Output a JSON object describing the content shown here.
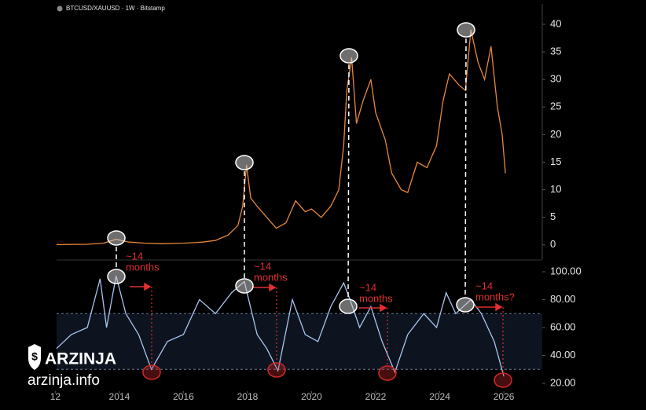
{
  "chart_data": [
    {
      "type": "line",
      "title": "BTCUSD/XAUUSD · 1W · Bitstamp",
      "color": "#e8883a",
      "x": [
        2012.04,
        2013.0,
        2013.5,
        2013.9,
        2014.3,
        2014.8,
        2015.3,
        2016.0,
        2016.6,
        2017.0,
        2017.4,
        2017.7,
        2017.85,
        2017.97,
        2018.1,
        2018.3,
        2018.6,
        2018.9,
        2019.2,
        2019.5,
        2019.8,
        2020.0,
        2020.3,
        2020.6,
        2020.85,
        2021.0,
        2021.1,
        2021.25,
        2021.4,
        2021.6,
        2021.85,
        2022.0,
        2022.3,
        2022.5,
        2022.8,
        2023.0,
        2023.3,
        2023.6,
        2023.9,
        2024.1,
        2024.3,
        2024.6,
        2024.8,
        2024.97,
        2025.2,
        2025.4,
        2025.6,
        2025.8,
        2025.95,
        2026.05
      ],
      "values": [
        0.05,
        0.1,
        0.3,
        1.0,
        0.5,
        0.3,
        0.2,
        0.3,
        0.5,
        0.8,
        1.8,
        3.5,
        7,
        14.5,
        8.5,
        7,
        5,
        3,
        4,
        8,
        6,
        6.5,
        5,
        7,
        10,
        18,
        28,
        34,
        22,
        26,
        30,
        24,
        19,
        13,
        10,
        9.5,
        15,
        14,
        18,
        26,
        31,
        29,
        28,
        39,
        33,
        30,
        36,
        25,
        20,
        13
      ],
      "xlim": [
        2012.04,
        2027.2
      ],
      "ylim": [
        -2.6,
        43.7
      ],
      "yticks": [
        0,
        5,
        10,
        15,
        20,
        25,
        30,
        35,
        40
      ]
    },
    {
      "type": "line",
      "color": "#a9c4ef",
      "x": [
        2012.04,
        2012.5,
        2013.0,
        2013.4,
        2013.6,
        2013.9,
        2014.2,
        2014.6,
        2015.0,
        2015.5,
        2016.0,
        2016.5,
        2017.0,
        2017.5,
        2017.9,
        2018.3,
        2018.6,
        2018.95,
        2019.4,
        2019.8,
        2020.2,
        2020.6,
        2021.0,
        2021.2,
        2021.5,
        2021.85,
        2022.2,
        2022.6,
        2023.0,
        2023.5,
        2023.9,
        2024.2,
        2024.5,
        2024.97,
        2025.3,
        2025.7,
        2026.0
      ],
      "values": [
        45,
        55,
        60,
        95,
        60,
        97,
        70,
        55,
        30,
        50,
        55,
        80,
        70,
        85,
        93,
        55,
        45,
        29,
        80,
        55,
        50,
        75,
        92,
        80,
        60,
        75,
        50,
        28,
        55,
        70,
        60,
        85,
        70,
        80,
        70,
        50,
        25
      ],
      "band": [
        30,
        70
      ],
      "xlim": [
        2012.04,
        2027.2
      ],
      "ylim": [
        14.4,
        107.9
      ],
      "yticks": [
        {
          "value": 20,
          "label": "20.00"
        },
        {
          "value": 40,
          "label": "40.00"
        },
        {
          "value": 60,
          "label": "60.00"
        },
        {
          "value": 80,
          "label": "80.00"
        },
        {
          "value": 100,
          "label": "100.00"
        }
      ],
      "xticks": [
        {
          "value": 2012,
          "label": "12"
        },
        2014,
        2016,
        2018,
        2020,
        2022,
        2024,
        2026
      ],
      "annotations": [
        {
          "lines": [
            "~14",
            "months"
          ]
        },
        {
          "lines": [
            "~14",
            "months"
          ]
        },
        {
          "lines": [
            "~14",
            "months"
          ]
        },
        {
          "lines": [
            "~14",
            "months?"
          ]
        }
      ]
    }
  ],
  "watermark": {
    "brand": "ARZINJA",
    "site": "arzinja.info"
  }
}
